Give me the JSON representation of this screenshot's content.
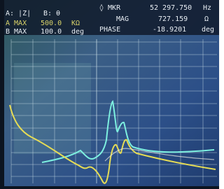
{
  "settings": {
    "trace_a": "A: |Z|",
    "trace_b": "B: θ",
    "a_max": {
      "label": "A MAX",
      "value": "500.0",
      "unit": "KΩ"
    },
    "b_max": {
      "label": "B MAX",
      "value": "100.0",
      "unit": "deg"
    }
  },
  "marker": {
    "label": "◊ MKR",
    "value": "52 297.750",
    "unit": "Hz",
    "mag": {
      "label": "MAG",
      "value": "727.159",
      "unit": "Ω"
    },
    "phase": {
      "label": "PHASE",
      "value": "-18.9201",
      "unit": "deg"
    }
  }
}
